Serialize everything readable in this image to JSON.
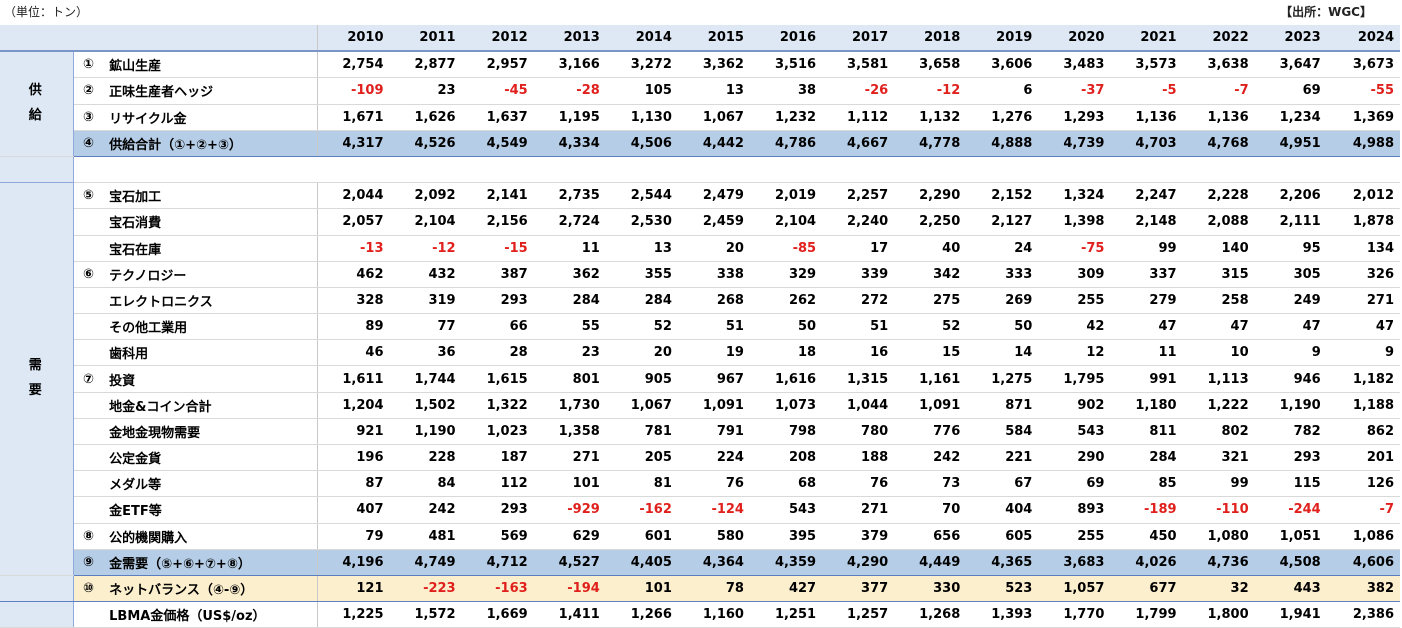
{
  "unit_note": "（単位：トン）",
  "source_note": "【出所：WGC】",
  "years": [
    "2010",
    "2011",
    "2012",
    "2013",
    "2014",
    "2015",
    "2016",
    "2017",
    "2018",
    "2019",
    "2020",
    "2021",
    "2022",
    "2023",
    "2024"
  ],
  "sections": {
    "supply": "供\n給",
    "demand": "需\n要"
  },
  "rows": [
    {
      "mark": "①",
      "label": "鉱山生産",
      "values": [
        "2,754",
        "2,877",
        "2,957",
        "3,166",
        "3,272",
        "3,362",
        "3,516",
        "3,581",
        "3,658",
        "3,606",
        "3,483",
        "3,573",
        "3,638",
        "3,647",
        "3,673"
      ]
    },
    {
      "mark": "②",
      "label": "正味生産者ヘッジ",
      "values": [
        "-109",
        "23",
        "-45",
        "-28",
        "105",
        "13",
        "38",
        "-26",
        "-12",
        "6",
        "-37",
        "-5",
        "-7",
        "69",
        "-55"
      ]
    },
    {
      "mark": "③",
      "label": "リサイクル金",
      "values": [
        "1,671",
        "1,626",
        "1,637",
        "1,195",
        "1,130",
        "1,067",
        "1,232",
        "1,112",
        "1,132",
        "1,276",
        "1,293",
        "1,136",
        "1,136",
        "1,234",
        "1,369"
      ]
    },
    {
      "mark": "④",
      "label": "供給合計（①+②+③）",
      "values": [
        "4,317",
        "4,526",
        "4,549",
        "4,334",
        "4,506",
        "4,442",
        "4,786",
        "4,667",
        "4,778",
        "4,888",
        "4,739",
        "4,703",
        "4,768",
        "4,951",
        "4,988"
      ]
    },
    {
      "mark": "⑤",
      "label": "宝石加工",
      "values": [
        "2,044",
        "2,092",
        "2,141",
        "2,735",
        "2,544",
        "2,479",
        "2,019",
        "2,257",
        "2,290",
        "2,152",
        "1,324",
        "2,247",
        "2,228",
        "2,206",
        "2,012"
      ]
    },
    {
      "mark": "",
      "label": "宝石消費",
      "values": [
        "2,057",
        "2,104",
        "2,156",
        "2,724",
        "2,530",
        "2,459",
        "2,104",
        "2,240",
        "2,250",
        "2,127",
        "1,398",
        "2,148",
        "2,088",
        "2,111",
        "1,878"
      ]
    },
    {
      "mark": "",
      "label": "宝石在庫",
      "values": [
        "-13",
        "-12",
        "-15",
        "11",
        "13",
        "20",
        "-85",
        "17",
        "40",
        "24",
        "-75",
        "99",
        "140",
        "95",
        "134"
      ]
    },
    {
      "mark": "⑥",
      "label": "テクノロジー",
      "values": [
        "462",
        "432",
        "387",
        "362",
        "355",
        "338",
        "329",
        "339",
        "342",
        "333",
        "309",
        "337",
        "315",
        "305",
        "326"
      ]
    },
    {
      "mark": "",
      "label": "エレクトロニクス",
      "values": [
        "328",
        "319",
        "293",
        "284",
        "284",
        "268",
        "262",
        "272",
        "275",
        "269",
        "255",
        "279",
        "258",
        "249",
        "271"
      ]
    },
    {
      "mark": "",
      "label": "その他工業用",
      "values": [
        "89",
        "77",
        "66",
        "55",
        "52",
        "51",
        "50",
        "51",
        "52",
        "50",
        "42",
        "47",
        "47",
        "47",
        "47"
      ]
    },
    {
      "mark": "",
      "label": "歯科用",
      "values": [
        "46",
        "36",
        "28",
        "23",
        "20",
        "19",
        "18",
        "16",
        "15",
        "14",
        "12",
        "11",
        "10",
        "9",
        "9"
      ]
    },
    {
      "mark": "⑦",
      "label": "投資",
      "values": [
        "1,611",
        "1,744",
        "1,615",
        "801",
        "905",
        "967",
        "1,616",
        "1,315",
        "1,161",
        "1,275",
        "1,795",
        "991",
        "1,113",
        "946",
        "1,182"
      ]
    },
    {
      "mark": "",
      "label": "地金&コイン合計",
      "values": [
        "1,204",
        "1,502",
        "1,322",
        "1,730",
        "1,067",
        "1,091",
        "1,073",
        "1,044",
        "1,091",
        "871",
        "902",
        "1,180",
        "1,222",
        "1,190",
        "1,188"
      ]
    },
    {
      "mark": "",
      "label": "金地金現物需要",
      "values": [
        "921",
        "1,190",
        "1,023",
        "1,358",
        "781",
        "791",
        "798",
        "780",
        "776",
        "584",
        "543",
        "811",
        "802",
        "782",
        "862"
      ]
    },
    {
      "mark": "",
      "label": "公定金貨",
      "values": [
        "196",
        "228",
        "187",
        "271",
        "205",
        "224",
        "208",
        "188",
        "242",
        "221",
        "290",
        "284",
        "321",
        "293",
        "201"
      ]
    },
    {
      "mark": "",
      "label": "メダル等",
      "values": [
        "87",
        "84",
        "112",
        "101",
        "81",
        "76",
        "68",
        "76",
        "73",
        "67",
        "69",
        "85",
        "99",
        "115",
        "126"
      ]
    },
    {
      "mark": "",
      "label": "金ETF等",
      "values": [
        "407",
        "242",
        "293",
        "-929",
        "-162",
        "-124",
        "543",
        "271",
        "70",
        "404",
        "893",
        "-189",
        "-110",
        "-244",
        "-7"
      ]
    },
    {
      "mark": "⑧",
      "label": "公的機関購入",
      "values": [
        "79",
        "481",
        "569",
        "629",
        "601",
        "580",
        "395",
        "379",
        "656",
        "605",
        "255",
        "450",
        "1,080",
        "1,051",
        "1,086"
      ]
    },
    {
      "mark": "⑨",
      "label": "金需要（⑤+⑥+⑦+⑧）",
      "values": [
        "4,196",
        "4,749",
        "4,712",
        "4,527",
        "4,405",
        "4,364",
        "4,359",
        "4,290",
        "4,449",
        "4,365",
        "3,683",
        "4,026",
        "4,736",
        "4,508",
        "4,606"
      ]
    },
    {
      "mark": "⑩",
      "label": "ネットバランス（④-⑨）",
      "values": [
        "121",
        "-223",
        "-163",
        "-194",
        "101",
        "78",
        "427",
        "377",
        "330",
        "523",
        "1,057",
        "677",
        "32",
        "443",
        "382"
      ]
    },
    {
      "mark": "",
      "label": "LBMA金価格（US$/oz）",
      "values": [
        "1,225",
        "1,572",
        "1,669",
        "1,411",
        "1,266",
        "1,160",
        "1,251",
        "1,257",
        "1,268",
        "1,393",
        "1,770",
        "1,799",
        "1,800",
        "1,941",
        "2,386"
      ]
    }
  ]
}
